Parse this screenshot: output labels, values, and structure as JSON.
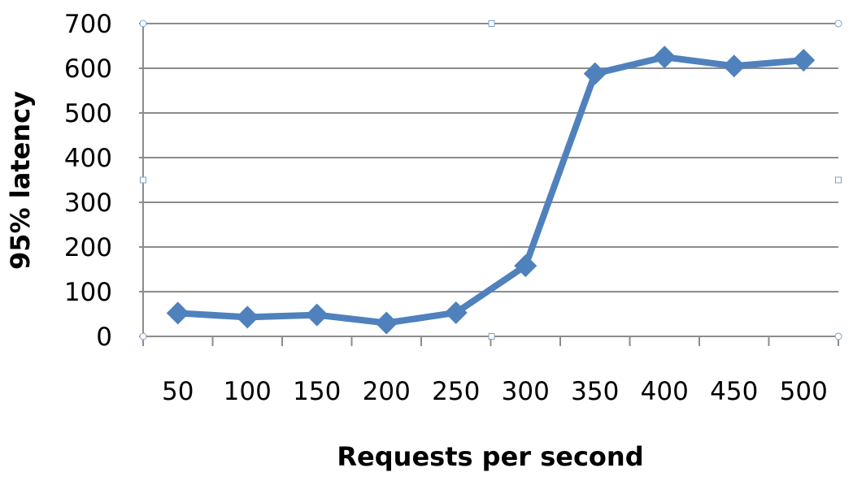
{
  "chart_data": {
    "type": "line",
    "categories": [
      "50",
      "100",
      "150",
      "200",
      "250",
      "300",
      "350",
      "400",
      "450",
      "500"
    ],
    "series": [
      {
        "values": [
          52,
          43,
          48,
          30,
          53,
          158,
          588,
          625,
          605,
          618
        ],
        "color": "#4f81bd",
        "marker": "diamond"
      }
    ],
    "title": "",
    "xlabel": "Requests per second",
    "ylabel": "95% latency",
    "ylim": [
      0,
      700
    ],
    "yticks": [
      "0",
      "100",
      "200",
      "300",
      "400",
      "500",
      "600",
      "700"
    ],
    "grid": true,
    "legend": "none"
  }
}
